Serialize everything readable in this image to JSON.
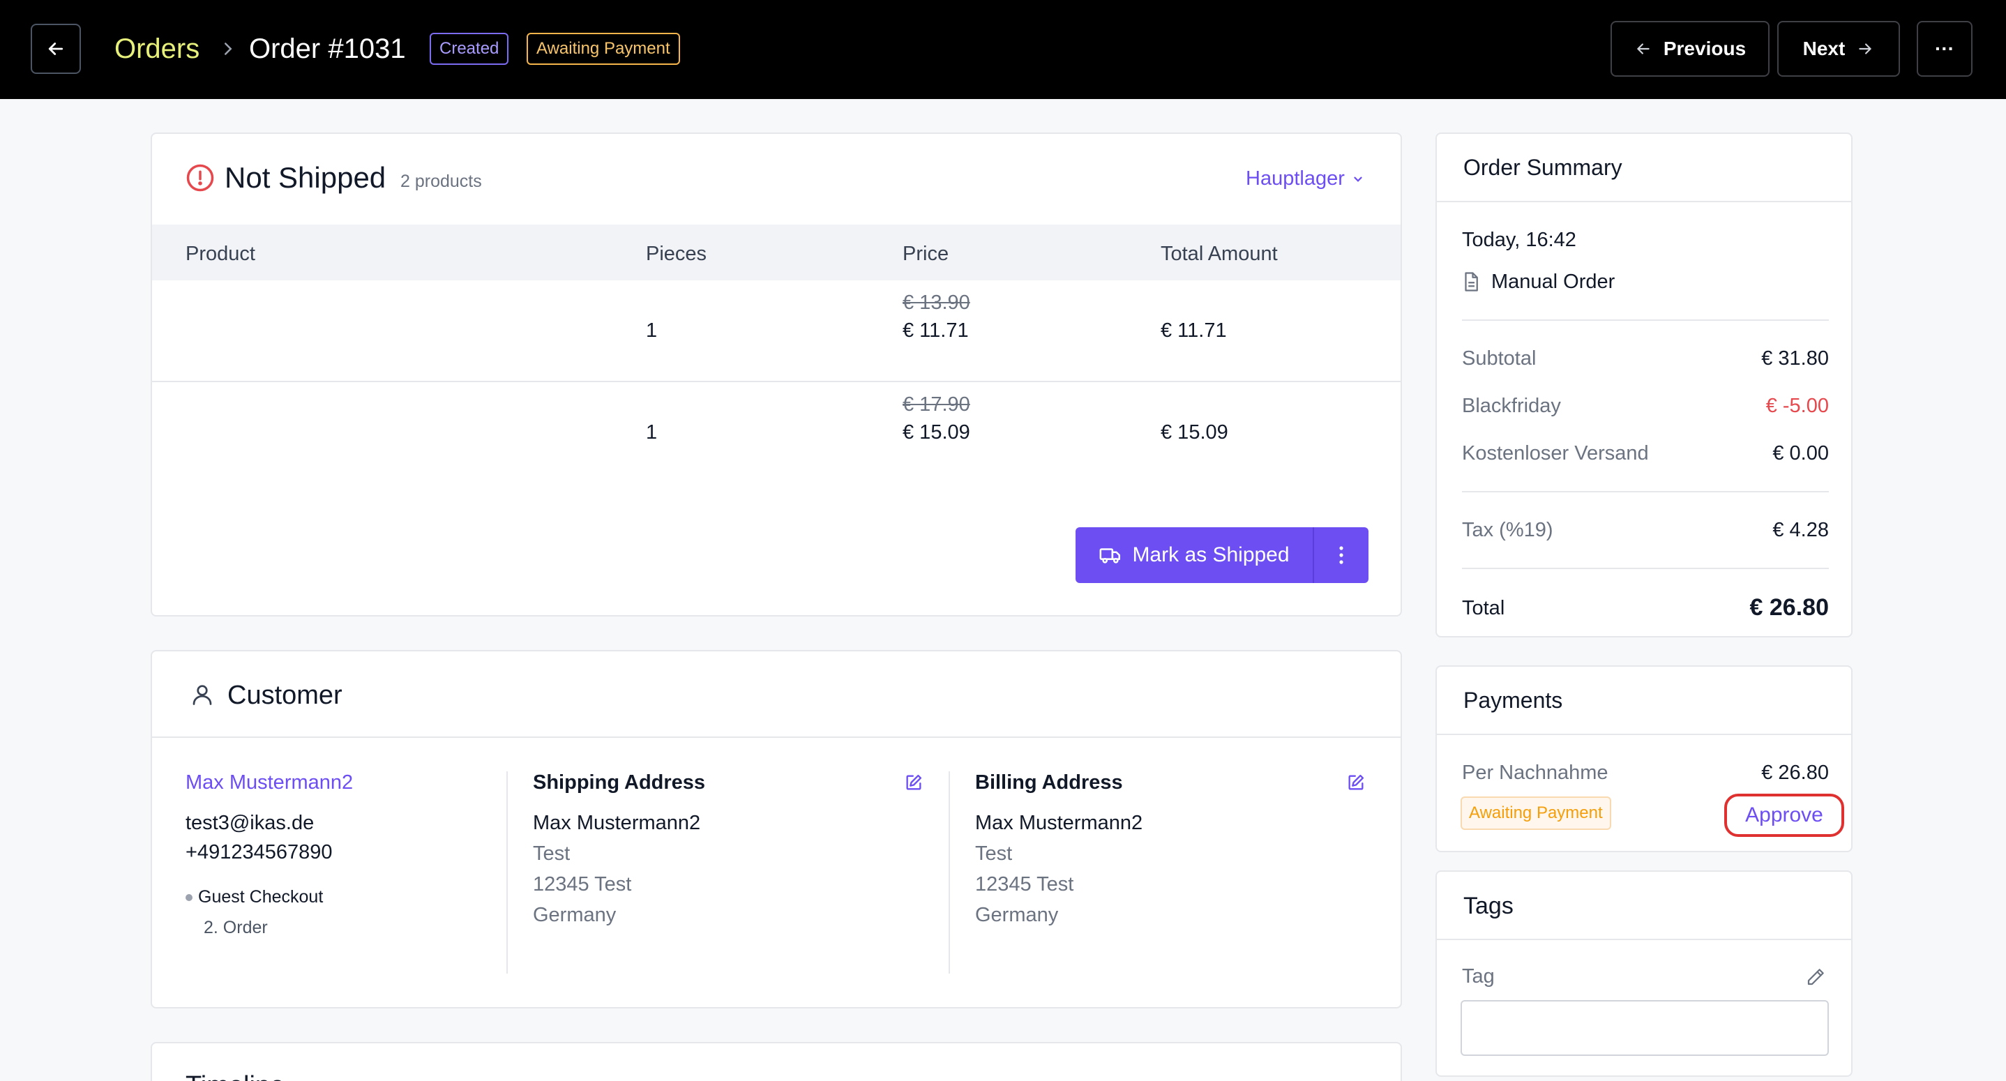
{
  "header": {
    "breadcrumb_root": "Orders",
    "title": "Order #1031",
    "badges": [
      "Created",
      "Awaiting Payment"
    ],
    "previous_label": "Previous",
    "next_label": "Next",
    "more_label": "···"
  },
  "shipping": {
    "title": "Not Shipped",
    "count": "2 products",
    "warehouse": "Hauptlager",
    "columns": [
      "Product",
      "Pieces",
      "Price",
      "Total Amount"
    ],
    "rows": [
      {
        "product": "",
        "pieces": "1",
        "old_price": "€ 13.90",
        "price": "€ 11.71",
        "total": "€ 11.71"
      },
      {
        "product": "",
        "pieces": "1",
        "old_price": "€ 17.90",
        "price": "€ 15.09",
        "total": "€ 15.09"
      }
    ],
    "mark_shipped_label": "Mark as Shipped"
  },
  "customer": {
    "title": "Customer",
    "name": "Max Mustermann2",
    "email": "test3@ikas.de",
    "phone": "+491234567890",
    "checkout_type": "Guest Checkout",
    "order_count": "2. Order",
    "shipping_address": {
      "title": "Shipping Address",
      "name": "Max Mustermann2",
      "line1": "Test",
      "line2": "12345 Test",
      "country": "Germany"
    },
    "billing_address": {
      "title": "Billing Address",
      "name": "Max Mustermann2",
      "line1": "Test",
      "line2": "12345 Test",
      "country": "Germany"
    }
  },
  "timeline": {
    "title": "Timeline"
  },
  "summary": {
    "title": "Order Summary",
    "date": "Today, 16:42",
    "source": "Manual Order",
    "subtotal_label": "Subtotal",
    "subtotal": "€ 31.80",
    "discount_label": "Blackfriday",
    "discount": "€ -5.00",
    "shipping_label": "Kostenloser Versand",
    "shipping": "€ 0.00",
    "tax_label": "Tax (%19)",
    "tax": "€ 4.28",
    "total_label": "Total",
    "total": "€ 26.80"
  },
  "payments": {
    "title": "Payments",
    "method": "Per Nachnahme",
    "amount": "€ 26.80",
    "status": "Awaiting Payment",
    "approve_label": "Approve"
  },
  "tags": {
    "title": "Tags",
    "label": "Tag",
    "value": ""
  },
  "colors": {
    "accent": "#6d4ef2",
    "breadcrumb": "#e6f07a",
    "danger": "#e5484d",
    "warning": "#f59e0b"
  }
}
